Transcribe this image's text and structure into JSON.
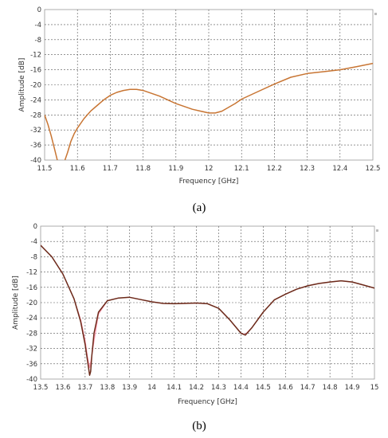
{
  "chart_data": [
    {
      "type": "line",
      "panel_label": "(a)",
      "xlabel": "Frequency [GHz]",
      "ylabel": "Amplitude [dB]",
      "xlim": [
        11.5,
        12.5
      ],
      "ylim": [
        -40,
        0
      ],
      "xticks": [
        "11.5",
        "11.6",
        "11.7",
        "11.8",
        "11.9",
        "12",
        "12.1",
        "12.2",
        "12.3",
        "12.4",
        "12.5"
      ],
      "yticks": [
        "0",
        "-4",
        "-8",
        "-12",
        "-16",
        "-20",
        "-24",
        "-28",
        "-32",
        "-36",
        "-40"
      ],
      "grid": true,
      "series": [
        {
          "color": "#c87533",
          "x": [
            11.5,
            11.51,
            11.52,
            11.53,
            11.54,
            11.55,
            11.56,
            11.57,
            11.58,
            11.59,
            11.6,
            11.62,
            11.64,
            11.66,
            11.68,
            11.7,
            11.72,
            11.74,
            11.76,
            11.78,
            11.8,
            11.85,
            11.9,
            11.95,
            12.0,
            12.02,
            12.04,
            12.06,
            12.08,
            12.1,
            12.15,
            12.2,
            12.25,
            12.3,
            12.35,
            12.4,
            12.45,
            12.5
          ],
          "y": [
            -28,
            -30.5,
            -33.5,
            -37,
            -40.5,
            -41,
            -40.5,
            -38,
            -35,
            -33,
            -31.5,
            -29,
            -27,
            -25.5,
            -24,
            -22.8,
            -22,
            -21.5,
            -21.2,
            -21.2,
            -21.5,
            -23,
            -25,
            -26.5,
            -27.5,
            -27.5,
            -27,
            -26,
            -25,
            -23.8,
            -21.8,
            -19.8,
            -18,
            -17,
            -16.5,
            -16,
            -15.2,
            -14.3
          ]
        }
      ]
    },
    {
      "type": "line",
      "panel_label": "(b)",
      "xlabel": "Frequency [GHz]",
      "ylabel": "Amplitude [dB]",
      "xlim": [
        13.5,
        15
      ],
      "ylim": [
        -40,
        0
      ],
      "xticks": [
        "13.5",
        "13.6",
        "13.7",
        "13.8",
        "13.9",
        "14",
        "14.1",
        "14.2",
        "14.3",
        "14.4",
        "14.5",
        "14.6",
        "14.7",
        "14.8",
        "14.9",
        "15"
      ],
      "yticks": [
        "0",
        "-4",
        "-8",
        "-12",
        "-16",
        "-20",
        "-24",
        "-28",
        "-32",
        "-36",
        "-40"
      ],
      "grid": true,
      "series": [
        {
          "color": "#ff9ab0",
          "x": [
            13.5,
            13.55,
            13.6,
            13.65,
            13.68,
            13.7,
            13.71,
            13.72,
            13.73,
            13.74,
            13.76,
            13.8,
            13.85,
            13.9,
            13.95,
            14.0,
            14.05,
            14.1,
            14.15,
            14.2,
            14.25,
            14.3,
            14.35,
            14.4,
            14.42,
            14.45,
            14.5,
            14.55,
            14.6,
            14.65,
            14.7,
            14.75,
            14.8,
            14.85,
            14.9,
            14.95,
            15.0
          ],
          "y": [
            -5,
            -8,
            -12.5,
            -19,
            -24.5,
            -30,
            -34,
            -37,
            -34,
            -30,
            -23,
            -19.5,
            -18.8,
            -18.6,
            -19.2,
            -19.8,
            -20.2,
            -20.3,
            -20.2,
            -20.1,
            -20.3,
            -21.5,
            -24.5,
            -28,
            -28.3,
            -26.5,
            -22.5,
            -19.3,
            -17.8,
            -16.5,
            -15.6,
            -15,
            -14.6,
            -14.3,
            -14.6,
            -15.4,
            -16.2
          ]
        },
        {
          "color": "#6b2a1a",
          "x": [
            13.5,
            13.55,
            13.6,
            13.65,
            13.68,
            13.7,
            13.71,
            13.72,
            13.725,
            13.73,
            13.74,
            13.76,
            13.8,
            13.85,
            13.9,
            13.95,
            14.0,
            14.05,
            14.1,
            14.15,
            14.2,
            14.25,
            14.3,
            14.35,
            14.4,
            14.42,
            14.45,
            14.5,
            14.55,
            14.6,
            14.65,
            14.7,
            14.75,
            14.8,
            14.85,
            14.9,
            14.95,
            15.0
          ],
          "y": [
            -5,
            -8,
            -12.5,
            -19,
            -25,
            -31,
            -35,
            -39,
            -38,
            -34,
            -28,
            -22.5,
            -19.5,
            -18.8,
            -18.6,
            -19.2,
            -19.8,
            -20.2,
            -20.3,
            -20.2,
            -20.1,
            -20.3,
            -21.5,
            -24.5,
            -28,
            -28.5,
            -26.5,
            -22.5,
            -19.3,
            -17.8,
            -16.5,
            -15.6,
            -15,
            -14.6,
            -14.3,
            -14.6,
            -15.4,
            -16.2
          ]
        }
      ]
    }
  ]
}
